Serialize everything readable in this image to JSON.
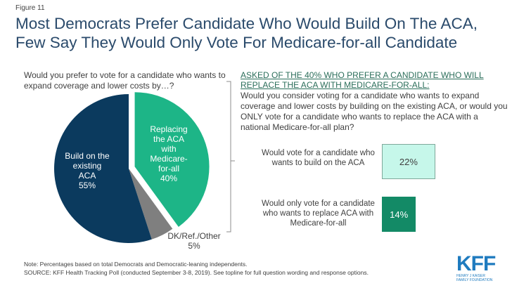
{
  "figure_label": "Figure 11",
  "title_line1": "Most Democrats Prefer Candidate Who Would Build On The ACA,",
  "title_line2": "Few Say They Would Only Vote For Medicare-for-all Candidate",
  "chart_data": [
    {
      "type": "pie",
      "title": "Would you prefer to vote for a candidate who wants to expand coverage and lower costs by…?",
      "slices": [
        {
          "label": "Replacing the ACA with Medicare-for-all",
          "value": 40,
          "value_label": "40%",
          "color": "#1db587",
          "exploded": true
        },
        {
          "label": "DK/Ref./Other",
          "value": 5,
          "value_label": "5%",
          "color": "#7f7f7f"
        },
        {
          "label": "Build on the existing ACA",
          "value": 55,
          "value_label": "55%",
          "color": "#0b3a5e"
        }
      ]
    },
    {
      "type": "bar",
      "orientation": "horizontal",
      "title_heading": "ASKED OF THE 40% WHO PREFER A CANDIDATE  WHO WILL REPLACE THE ACA WITH MEDICARE-FOR-ALL:",
      "title": "Would you consider voting for a candidate who wants to expand coverage and lower costs by building  on the existing ACA, or would you ONLY vote for a candidate who wants to replace the ACA with a national Medicare-for-all plan?",
      "categories": [
        "Would vote for a candidate who wants to build on the ACA",
        "Would only vote for a candidate who wants to replace ACA with Medicare-for-all"
      ],
      "values": [
        22,
        14
      ],
      "value_labels": [
        "22%",
        "14%"
      ],
      "colors": [
        "#c6f7ea",
        "#138a66"
      ]
    }
  ],
  "note": "Note: Percentages based on total Democrats and Democratic-leaning independents.",
  "source": "SOURCE: KFF Health Tracking Poll (conducted September 3-8, 2019). See topline for full question wording and response options.",
  "logo": {
    "main": "KFF",
    "sub1": "HENRY J KAISER",
    "sub2": "FAMILY FOUNDATION",
    "color": "#1f7bbf"
  }
}
